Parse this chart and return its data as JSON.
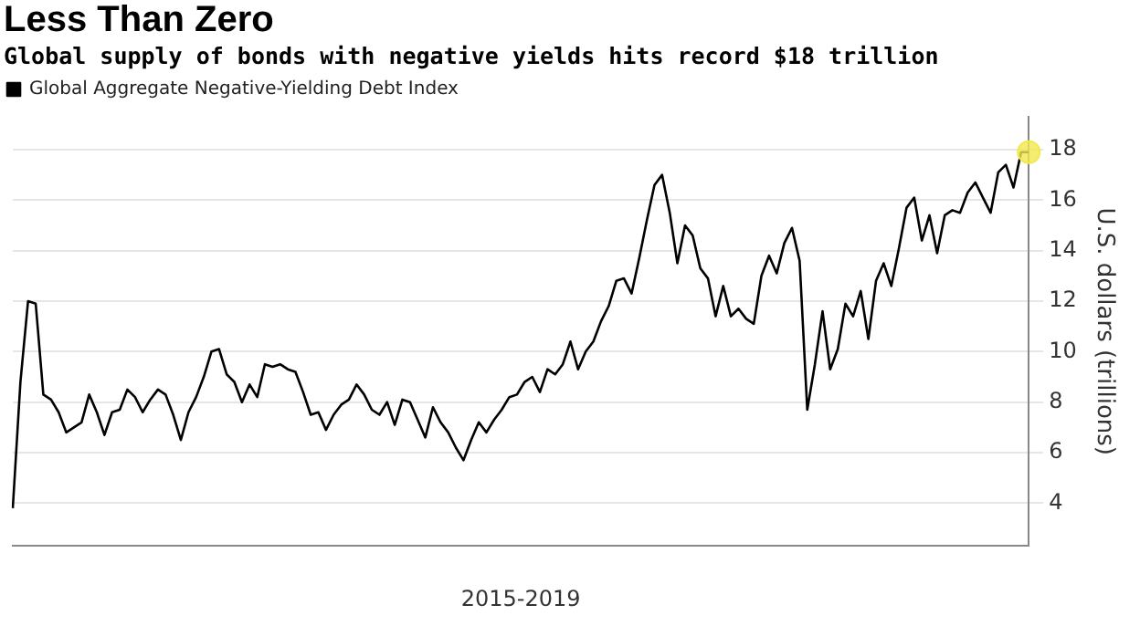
{
  "chart_data": {
    "type": "line",
    "title": "Less Than Zero",
    "subtitle": "Global supply of bonds with negative yields hits record $18 trillion",
    "xlabel": "2015-2019",
    "ylabel": "U.S. dollars (trillions)",
    "categories": [
      null,
      null,
      null,
      null,
      null,
      null,
      null,
      null,
      null,
      null,
      null,
      null,
      null,
      null,
      null,
      null,
      null,
      null,
      null,
      null,
      null,
      null,
      null,
      null,
      null,
      null,
      null,
      null,
      null,
      null,
      null,
      null,
      null,
      null,
      null,
      null,
      null,
      null,
      null,
      null,
      null,
      null,
      null,
      null,
      null,
      null,
      null,
      null,
      null,
      null,
      null,
      null,
      null,
      null,
      null,
      null,
      null,
      null,
      null,
      null,
      null,
      null,
      null,
      null,
      null,
      null,
      null,
      null,
      null,
      null,
      null,
      null,
      null,
      null,
      null,
      null,
      null,
      null,
      null,
      null,
      null,
      null,
      null,
      null,
      null,
      null,
      null,
      null,
      null,
      null,
      null,
      null,
      null,
      null,
      null,
      null,
      null,
      null,
      null,
      null,
      null,
      null,
      null,
      null,
      null,
      null,
      null,
      null,
      null,
      null,
      null,
      null,
      null,
      null,
      null,
      null,
      null,
      null,
      null,
      null,
      null,
      null,
      null,
      null,
      null,
      null,
      null,
      null,
      null,
      null,
      null,
      null,
      null,
      null
    ],
    "series": [
      {
        "name": "Global Aggregate Negative-Yielding Debt Index",
        "color": "#000000",
        "values": [
          3.8,
          8.8,
          12.0,
          11.9,
          8.3,
          8.1,
          7.6,
          6.8,
          7.0,
          7.2,
          8.3,
          7.6,
          6.7,
          7.6,
          7.7,
          8.5,
          8.2,
          7.6,
          8.1,
          8.5,
          8.3,
          7.5,
          6.5,
          7.6,
          8.2,
          9.0,
          10.0,
          10.1,
          9.1,
          8.8,
          8.0,
          8.7,
          8.2,
          9.5,
          9.4,
          9.5,
          9.3,
          9.2,
          8.4,
          7.5,
          7.6,
          6.9,
          7.5,
          7.9,
          8.1,
          8.7,
          8.3,
          7.7,
          7.5,
          8.0,
          7.1,
          8.1,
          8.0,
          7.3,
          6.6,
          7.8,
          7.2,
          6.8,
          6.2,
          5.7,
          6.5,
          7.2,
          6.8,
          7.3,
          7.7,
          8.2,
          8.3,
          8.8,
          9.0,
          8.4,
          9.3,
          9.1,
          9.5,
          10.4,
          9.3,
          10.0,
          10.4,
          11.2,
          11.8,
          12.8,
          12.9,
          12.3,
          13.7,
          15.2,
          16.6,
          17.0,
          15.5,
          13.5,
          15.0,
          14.6,
          13.3,
          12.9,
          11.4,
          12.6,
          11.4,
          11.7,
          11.3,
          11.1,
          13.0,
          13.8,
          13.1,
          14.3,
          14.9,
          13.6,
          7.7,
          9.5,
          11.6,
          9.3,
          10.1,
          11.9,
          11.4,
          12.4,
          10.5,
          12.8,
          13.5,
          12.6,
          14.1,
          15.7,
          16.1,
          14.4,
          15.4,
          13.9,
          15.4,
          15.6,
          15.5,
          16.3,
          16.7,
          16.1,
          15.5,
          17.1,
          17.4,
          16.5,
          17.9,
          17.9
        ]
      },
      {
        "type": "scatter",
        "marker": "circle",
        "color": "#f2e94e",
        "values": [
          null,
          null,
          null,
          null,
          null,
          null,
          null,
          null,
          null,
          null,
          null,
          null,
          null,
          null,
          null,
          null,
          null,
          null,
          null,
          null,
          null,
          null,
          null,
          null,
          null,
          null,
          null,
          null,
          null,
          null,
          null,
          null,
          null,
          null,
          null,
          null,
          null,
          null,
          null,
          null,
          null,
          null,
          null,
          null,
          null,
          null,
          null,
          null,
          null,
          null,
          null,
          null,
          null,
          null,
          null,
          null,
          null,
          null,
          null,
          null,
          null,
          null,
          null,
          null,
          null,
          null,
          null,
          null,
          null,
          null,
          null,
          null,
          null,
          null,
          null,
          null,
          null,
          null,
          null,
          null,
          null,
          null,
          null,
          null,
          null,
          null,
          null,
          null,
          null,
          null,
          null,
          null,
          null,
          null,
          null,
          null,
          null,
          null,
          null,
          null,
          null,
          null,
          null,
          null,
          null,
          null,
          null,
          null,
          null,
          null,
          null,
          null,
          null,
          null,
          null,
          null,
          null,
          null,
          null,
          null,
          null,
          null,
          null,
          null,
          null,
          null,
          null,
          null,
          null,
          null,
          null,
          null,
          null,
          17.9
        ]
      }
    ],
    "ylim": [
      2.3,
      19.3
    ],
    "yticks": [
      4,
      6,
      8,
      10,
      12,
      14,
      16,
      18
    ],
    "grid": "y",
    "legend": "top left",
    "marker": "none",
    "line_style": "solid"
  }
}
